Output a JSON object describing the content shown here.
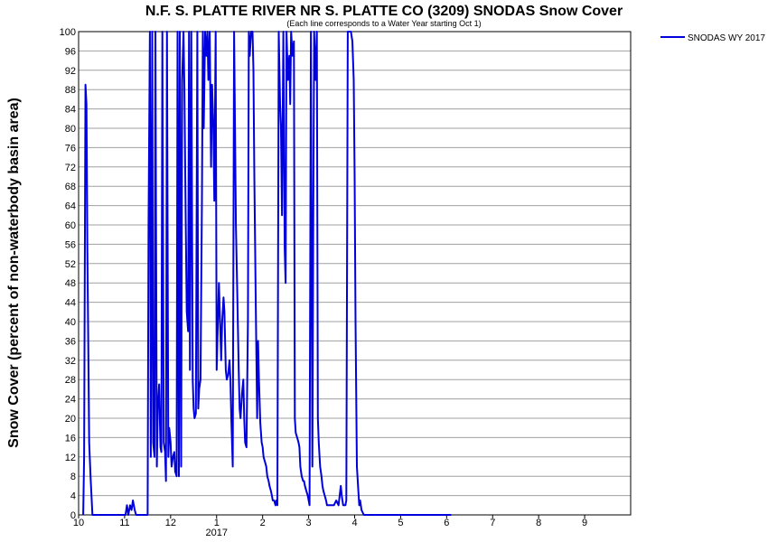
{
  "chart_data": {
    "type": "line",
    "title": "N.F. S. PLATTE RIVER NR S. PLATTE CO (3209) SNODAS Snow Cover",
    "subtitle": "(Each line corresponds to a Water Year starting Oct 1)",
    "ylabel": "Snow Cover (percent of non-waterbody basin area)",
    "xlabel": "",
    "ylim": [
      0,
      100
    ],
    "xlim": [
      0,
      12
    ],
    "grid": true,
    "legend_position": "top-right",
    "y_ticks": [
      0,
      4,
      8,
      12,
      16,
      20,
      24,
      28,
      32,
      36,
      40,
      44,
      48,
      52,
      56,
      60,
      64,
      68,
      72,
      76,
      80,
      84,
      88,
      92,
      96,
      100
    ],
    "x_ticks": [
      {
        "value": 0,
        "label": "10"
      },
      {
        "value": 1,
        "label": "11"
      },
      {
        "value": 2,
        "label": "12"
      },
      {
        "value": 3,
        "label": "1"
      },
      {
        "value": 4,
        "label": "2"
      },
      {
        "value": 5,
        "label": "3"
      },
      {
        "value": 6,
        "label": "4"
      },
      {
        "value": 7,
        "label": "5"
      },
      {
        "value": 8,
        "label": "6"
      },
      {
        "value": 9,
        "label": "7"
      },
      {
        "value": 10,
        "label": "8"
      },
      {
        "value": 11,
        "label": "9"
      }
    ],
    "year_label": {
      "value": 3,
      "label": "2017"
    },
    "series": [
      {
        "name": "SNODAS WY 2017",
        "color": "#0000dd",
        "x": [
          0.1,
          0.12,
          0.15,
          0.17,
          0.19,
          0.21,
          0.23,
          0.26,
          0.3,
          0.4,
          0.6,
          0.9,
          1.02,
          1.05,
          1.08,
          1.12,
          1.15,
          1.18,
          1.22,
          1.25,
          1.3,
          1.38,
          1.5,
          1.52,
          1.55,
          1.57,
          1.6,
          1.62,
          1.65,
          1.67,
          1.7,
          1.72,
          1.75,
          1.78,
          1.8,
          1.82,
          1.85,
          1.88,
          1.9,
          1.92,
          1.95,
          1.97,
          2.0,
          2.02,
          2.05,
          2.08,
          2.1,
          2.13,
          2.15,
          2.18,
          2.2,
          2.23,
          2.25,
          2.28,
          2.3,
          2.33,
          2.35,
          2.38,
          2.4,
          2.42,
          2.45,
          2.48,
          2.5,
          2.52,
          2.55,
          2.58,
          2.6,
          2.62,
          2.65,
          2.68,
          2.7,
          2.72,
          2.75,
          2.78,
          2.8,
          2.82,
          2.85,
          2.88,
          2.9,
          2.93,
          2.95,
          2.98,
          3.0,
          3.05,
          3.1,
          3.12,
          3.15,
          3.17,
          3.2,
          3.22,
          3.25,
          3.28,
          3.3,
          3.32,
          3.35,
          3.38,
          3.4,
          3.42,
          3.45,
          3.48,
          3.5,
          3.52,
          3.55,
          3.58,
          3.6,
          3.62,
          3.65,
          3.68,
          3.7,
          3.72,
          3.75,
          3.78,
          3.8,
          3.82,
          3.85,
          3.88,
          3.9,
          3.92,
          3.95,
          3.98,
          4.0,
          4.02,
          4.05,
          4.08,
          4.1,
          4.13,
          4.15,
          4.18,
          4.2,
          4.22,
          4.25,
          4.28,
          4.3,
          4.32,
          4.35,
          4.38,
          4.4,
          4.42,
          4.45,
          4.48,
          4.5,
          4.52,
          4.55,
          4.58,
          4.6,
          4.62,
          4.65,
          4.68,
          4.7,
          4.72,
          4.75,
          4.78,
          4.8,
          4.82,
          4.85,
          4.88,
          4.9,
          4.92,
          4.95,
          4.98,
          5.0,
          5.02,
          5.05,
          5.08,
          5.1,
          5.12,
          5.15,
          5.18,
          5.2,
          5.22,
          5.25,
          5.28,
          5.3,
          5.32,
          5.35,
          5.38,
          5.4,
          5.45,
          5.5,
          5.55,
          5.6,
          5.65,
          5.7,
          5.72,
          5.75,
          5.78,
          5.8,
          5.82,
          5.85,
          5.88,
          5.9,
          5.92,
          5.95,
          5.98,
          6.0,
          6.02,
          6.05,
          6.08,
          6.1,
          6.12,
          6.15,
          6.2,
          6.25,
          6.3,
          6.35,
          6.4,
          6.42,
          6.45,
          6.48,
          6.5,
          6.52,
          6.55,
          6.58,
          6.6,
          6.62,
          6.65,
          6.68,
          6.7,
          6.72,
          6.75,
          6.78,
          6.8,
          6.82,
          6.85,
          6.88,
          6.9,
          6.92,
          6.95,
          6.98,
          7.0,
          7.05,
          7.1,
          7.15,
          7.2,
          7.25,
          7.3,
          7.35,
          7.38,
          7.4,
          7.42,
          7.45,
          7.48,
          7.5,
          7.52,
          7.55,
          7.58,
          7.6,
          7.62,
          7.65,
          7.68,
          7.7,
          7.72,
          7.75,
          7.78,
          7.8,
          7.82,
          7.85,
          7.88,
          7.9,
          7.92,
          7.95,
          7.98,
          8.0,
          8.05,
          8.1
        ],
        "values": [
          0,
          12,
          89,
          85,
          55,
          35,
          15,
          8,
          0,
          0,
          0,
          0,
          0,
          2,
          0,
          2,
          1,
          3,
          1,
          0,
          0,
          0,
          0,
          60,
          100,
          12,
          100,
          15,
          12,
          100,
          10,
          22,
          27,
          14,
          13,
          100,
          15,
          13,
          7,
          100,
          12,
          18,
          15,
          10,
          12,
          13,
          9,
          8,
          100,
          8,
          100,
          10,
          90,
          100,
          88,
          60,
          42,
          38,
          100,
          30,
          100,
          28,
          22,
          20,
          21,
          100,
          22,
          26,
          28,
          65,
          100,
          80,
          100,
          95,
          100,
          90,
          100,
          72,
          89,
          80,
          65,
          100,
          30,
          48,
          32,
          40,
          45,
          42,
          30,
          28,
          29,
          32,
          28,
          20,
          10,
          100,
          80,
          60,
          45,
          30,
          22,
          20,
          25,
          28,
          20,
          15,
          14,
          40,
          100,
          95,
          100,
          100,
          92,
          70,
          45,
          20,
          36,
          28,
          19,
          15,
          14,
          12,
          11,
          10,
          8,
          7,
          6,
          5,
          4,
          3,
          3,
          2,
          3,
          2,
          100,
          85,
          80,
          62,
          100,
          55,
          48,
          100,
          90,
          95,
          85,
          100,
          95,
          98,
          20,
          17,
          16,
          15,
          14,
          10,
          8,
          7,
          7,
          6,
          5,
          4,
          3,
          2,
          100,
          10,
          60,
          100,
          90,
          100,
          20,
          15,
          10,
          8,
          6,
          5,
          4,
          3,
          2,
          2,
          2,
          2,
          3,
          2,
          6,
          4,
          2,
          2,
          2,
          3,
          100,
          100,
          100,
          100,
          98,
          90,
          70,
          40,
          10,
          5,
          2,
          3,
          1,
          0,
          0,
          0,
          0,
          0,
          0,
          0,
          0,
          0,
          0,
          0,
          0,
          0,
          0,
          0,
          0,
          0,
          0,
          0,
          0,
          0,
          0,
          0,
          0,
          0,
          0,
          0,
          0,
          0,
          0,
          0,
          0,
          0,
          0,
          0,
          0,
          0,
          0,
          0,
          0,
          0,
          0,
          0,
          0,
          0,
          0,
          0,
          0,
          0,
          0,
          0,
          0,
          0,
          0,
          0,
          0,
          0,
          0,
          0,
          0,
          0,
          0,
          0,
          0
        ]
      }
    ]
  }
}
